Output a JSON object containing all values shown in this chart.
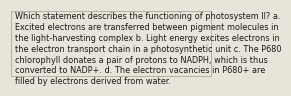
{
  "lines": [
    "Which statement describes the functioning of photosystem II? a.",
    "Excited electrons are transferred between pigment molecules in",
    "the light-harvesting complex b. Light energy excites electrons in",
    "the electron transport chain in a photosynthetic unit c. The P680",
    "chlorophyll donates a pair of protons to NADPH, which is thus",
    "converted to NADP+. d. The electron vacancies in P680+ are",
    "filled by electrons derived from water."
  ],
  "font_size": 5.85,
  "font_color": "#1a1a1a",
  "background_color": "#e8e4da",
  "border_color": "#b0a898",
  "font_family": "DejaVu Sans"
}
